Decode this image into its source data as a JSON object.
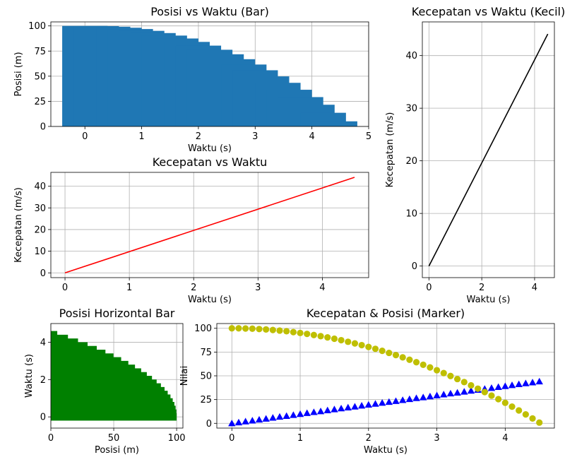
{
  "chart_data": [
    {
      "id": "c1",
      "type": "bar",
      "title": "Posisi vs Waktu (Bar)",
      "xlabel": "Waktu (s)",
      "ylabel": "Posisi (m)",
      "xlim": [
        -0.6,
        5.0
      ],
      "ylim": [
        0,
        104
      ],
      "xticks": [
        0,
        1,
        2,
        3,
        4,
        5
      ],
      "yticks": [
        0,
        25,
        50,
        75,
        100
      ],
      "grid": true,
      "color": "#1f77b4",
      "bar_width": 0.8,
      "x": [
        0.0,
        0.2,
        0.4,
        0.6,
        0.8,
        1.0,
        1.2,
        1.4,
        1.6,
        1.8,
        2.0,
        2.2,
        2.4,
        2.6,
        2.8,
        3.0,
        3.2,
        3.4,
        3.6,
        3.8,
        4.0,
        4.2,
        4.4,
        4.6
      ],
      "values": [
        100.0,
        99.8,
        99.2,
        98.2,
        96.9,
        95.1,
        92.9,
        90.4,
        87.5,
        84.1,
        80.4,
        76.3,
        71.8,
        66.9,
        61.6,
        55.9,
        49.8,
        43.4,
        36.5,
        29.2,
        21.6,
        13.6,
        5.1,
        0.0
      ]
    },
    {
      "id": "c2",
      "type": "line",
      "title": "Kecepatan vs Waktu (Kecil)",
      "xlabel": "Waktu (s)",
      "ylabel": "Kecepatan (m/s)",
      "xlim": [
        -0.25,
        4.75
      ],
      "ylim": [
        -2.2,
        46.4
      ],
      "xticks": [
        0,
        2,
        4
      ],
      "yticks": [
        0,
        10,
        20,
        30,
        40
      ],
      "grid": true,
      "color": "#000000",
      "x": [
        0,
        4.5
      ],
      "y": [
        0,
        44.1
      ]
    },
    {
      "id": "c3",
      "type": "line",
      "title": "Kecepatan vs Waktu",
      "xlabel": "Waktu (s)",
      "ylabel": "Kecepatan (m/s)",
      "xlim": [
        -0.22,
        4.72
      ],
      "ylim": [
        -2.2,
        46.4
      ],
      "xticks": [
        0,
        1,
        2,
        3,
        4
      ],
      "yticks": [
        0,
        10,
        20,
        30,
        40
      ],
      "grid": true,
      "color": "#ff0000",
      "x": [
        0,
        4.5
      ],
      "y": [
        0,
        44.1
      ]
    },
    {
      "id": "c4",
      "type": "bar",
      "orientation": "horizontal",
      "title": "Posisi Horizontal Bar",
      "xlabel": "Posisi (m)",
      "ylabel": "Waktu (s)",
      "xlim": [
        0,
        105
      ],
      "ylim": [
        -0.6,
        5.0
      ],
      "xticks": [
        0,
        50,
        100
      ],
      "yticks": [
        0,
        2,
        4
      ],
      "grid": true,
      "color": "#008000",
      "bar_height": 0.4,
      "y": [
        0.0,
        0.2,
        0.4,
        0.6,
        0.8,
        1.0,
        1.2,
        1.4,
        1.6,
        1.8,
        2.0,
        2.2,
        2.4,
        2.6,
        2.8,
        3.0,
        3.2,
        3.4,
        3.6,
        3.8,
        4.0,
        4.2,
        4.4,
        4.6
      ],
      "values": [
        100.0,
        99.8,
        99.2,
        98.2,
        96.9,
        95.1,
        92.9,
        90.4,
        87.5,
        84.1,
        80.4,
        76.3,
        71.8,
        66.9,
        61.6,
        55.9,
        49.8,
        43.4,
        36.5,
        29.2,
        21.6,
        13.6,
        5.1,
        0.0
      ]
    },
    {
      "id": "c5",
      "type": "scatter",
      "title": "Kecepatan & Posisi (Marker)",
      "xlabel": "Waktu (s)",
      "ylabel": "Nilai",
      "xlim": [
        -0.22,
        4.72
      ],
      "ylim": [
        -5,
        105
      ],
      "xticks": [
        0,
        1,
        2,
        3,
        4
      ],
      "yticks": [
        0,
        25,
        50,
        75,
        100
      ],
      "grid": true,
      "x": [
        0.0,
        0.1,
        0.2,
        0.3,
        0.4,
        0.5,
        0.6,
        0.7,
        0.8,
        0.9,
        1.0,
        1.1,
        1.2,
        1.3,
        1.4,
        1.5,
        1.6,
        1.7,
        1.8,
        1.9,
        2.0,
        2.1,
        2.2,
        2.3,
        2.4,
        2.5,
        2.6,
        2.7,
        2.8,
        2.9,
        3.0,
        3.1,
        3.2,
        3.3,
        3.4,
        3.5,
        3.6,
        3.7,
        3.8,
        3.9,
        4.0,
        4.1,
        4.2,
        4.3,
        4.4,
        4.5
      ],
      "series": [
        {
          "marker": "triangle",
          "color": "#0000ff",
          "values": [
            0.0,
            1.0,
            2.0,
            2.9,
            3.9,
            4.9,
            5.9,
            6.9,
            7.8,
            8.8,
            9.8,
            10.8,
            11.8,
            12.7,
            13.7,
            14.7,
            15.7,
            16.7,
            17.6,
            18.6,
            19.6,
            20.6,
            21.6,
            22.5,
            23.5,
            24.5,
            25.5,
            26.5,
            27.4,
            28.4,
            29.4,
            30.4,
            31.4,
            32.3,
            33.3,
            34.3,
            35.3,
            36.3,
            37.2,
            38.2,
            39.2,
            40.2,
            41.2,
            42.1,
            43.1,
            44.1
          ]
        },
        {
          "marker": "circle",
          "color": "#bfbf00",
          "values": [
            100.0,
            100.0,
            99.8,
            99.6,
            99.2,
            98.8,
            98.2,
            97.6,
            96.9,
            96.0,
            95.1,
            94.1,
            92.9,
            91.7,
            90.4,
            89.0,
            87.5,
            85.8,
            84.1,
            82.3,
            80.4,
            78.4,
            76.3,
            74.1,
            71.8,
            69.4,
            66.9,
            64.3,
            61.6,
            58.8,
            55.9,
            52.9,
            49.8,
            46.6,
            43.4,
            40.0,
            36.5,
            32.9,
            29.2,
            25.5,
            21.6,
            17.6,
            13.6,
            9.4,
            5.1,
            0.8
          ]
        }
      ]
    }
  ]
}
